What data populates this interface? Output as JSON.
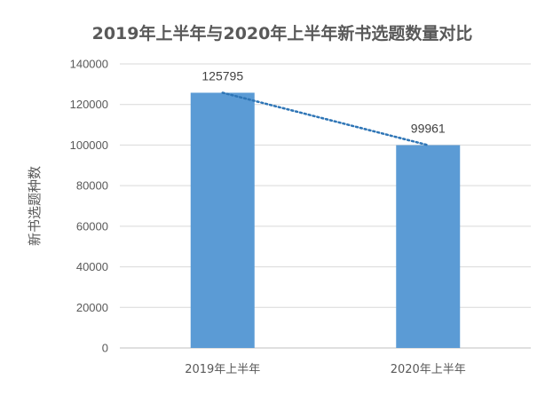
{
  "chart_data": {
    "type": "bar",
    "title": "2019年上半年与2020年上半年新书选题数量对比",
    "xlabel": "",
    "ylabel": "新书选题种数",
    "categories": [
      "2019年上半年",
      "2020年上半年"
    ],
    "values": [
      125795,
      99961
    ],
    "data_labels": [
      "125795",
      "99961"
    ],
    "ylim": [
      0,
      140000
    ],
    "yticks": [
      0,
      20000,
      40000,
      60000,
      80000,
      100000,
      120000,
      140000
    ],
    "ytick_labels": [
      "0",
      "20000",
      "40000",
      "60000",
      "80000",
      "100000",
      "120000",
      "140000"
    ],
    "grid": true,
    "legend": "none",
    "trendline": "dotted",
    "colors": {
      "bar": "#5B9BD5",
      "trend": "#2E75B6",
      "grid": "#D9D9D9",
      "axis": "#BFBFBF"
    }
  }
}
